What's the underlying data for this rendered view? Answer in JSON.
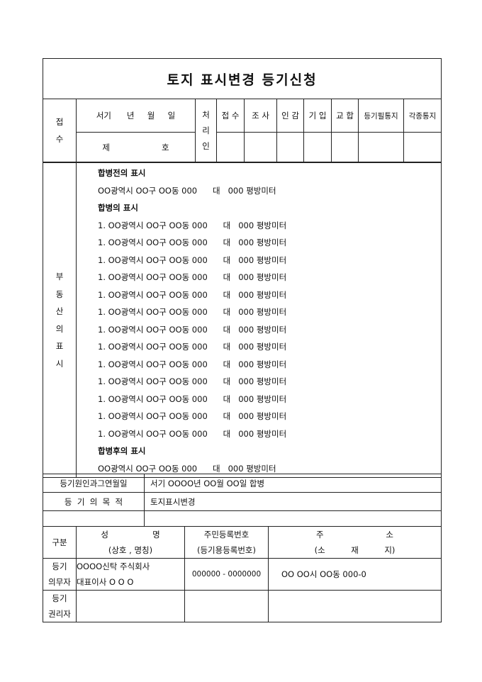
{
  "title": "토지 표시변경 등기신청",
  "reception": {
    "label": "접\n수",
    "date": "서기      년     월     일",
    "number": "제                    호",
    "processor": "처\n리\n인",
    "headers": [
      "접 수",
      "조 사",
      "인 감",
      "기 입",
      "교 합",
      "등기필통지",
      "각종통지"
    ]
  },
  "property": {
    "label": "부\n동\n산\n의\n표\n시",
    "before_heading": "합병전의 표시",
    "before": "OO광역시 OO구 OO동 000      대   000 평방미터",
    "merge_heading": "합병의 표시",
    "merge_items": [
      "1. OO광역시 OO구 OO동 000      대   000 평방미터",
      "1. OO광역시 OO구 OO동 000      대   000 평방미터",
      "1. OO광역시 OO구 OO동 000      대   000 평방미터",
      "1. OO광역시 OO구 OO동 000      대   000 평방미터",
      "1. OO광역시 OO구 OO동 000      대   000 평방미터",
      "1. OO광역시 OO구 OO동 000      대   000 평방미터",
      "1. OO광역시 OO구 OO동 000      대   000 평방미터",
      "1. OO광역시 OO구 OO동 000      대   000 평방미터",
      "1. OO광역시 OO구 OO동 000      대   000 평방미터",
      "1. OO광역시 OO구 OO동 000      대   000 평방미터",
      "1. OO광역시 OO구 OO동 000      대   000 평방미터",
      "1. OO광역시 OO구 OO동 000      대   000 평방미터",
      "1. OO광역시 OO구 OO동 000      대   000 평방미터"
    ],
    "after_heading": "합병후의 표시",
    "after": "OO광역시 OO구 OO동 000      대   000 평방미터"
  },
  "cause": {
    "label": "등기원인과그연월일",
    "value": "서기 OOOO년 OO월 OO일 합병"
  },
  "purpose": {
    "label": "등  기  의  목  적",
    "value": "토지표시변경"
  },
  "parties": {
    "headers": {
      "category": "구분",
      "name": "성                 명",
      "name_sub": "(상호 , 명칭)",
      "id": "주민등록번호",
      "id_sub": "(등기용등록번호)",
      "addr": "주                        소",
      "addr_sub": "(소          재          지)"
    },
    "obligor": {
      "label1": "등기",
      "label2": "의무자",
      "name1": "OOOO신탁 주식회사",
      "name2": "대표이사 O O O",
      "id": "000000 - 0000000",
      "addr": "OO OO시 OO동 000-0"
    },
    "right_holder": {
      "label1": "등기",
      "label2": "권리자"
    }
  }
}
